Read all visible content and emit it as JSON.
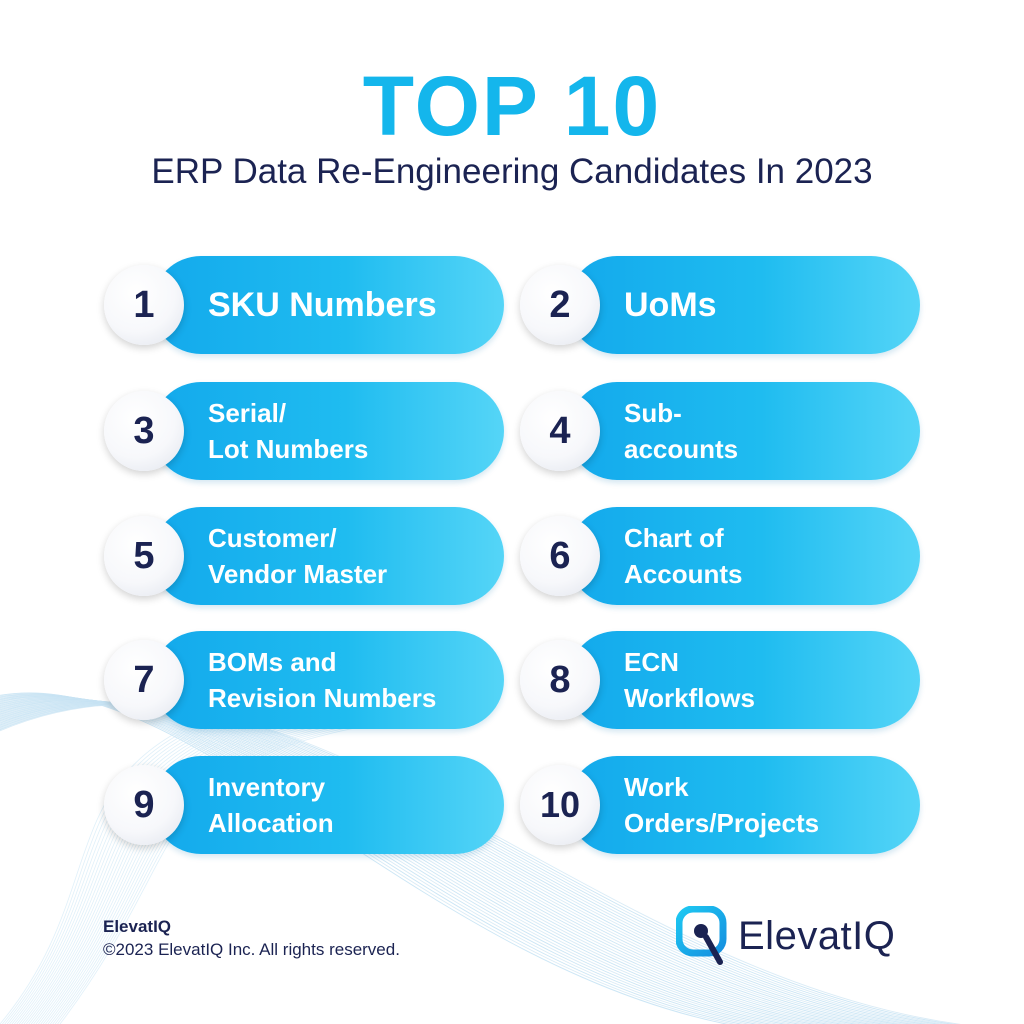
{
  "header": {
    "title": "TOP 10",
    "subtitle": "ERP Data Re-Engineering Candidates In 2023"
  },
  "items": [
    {
      "number": "1",
      "line1": "SKU Numbers",
      "line2": ""
    },
    {
      "number": "2",
      "line1": "UoMs",
      "line2": ""
    },
    {
      "number": "3",
      "line1": "Serial/",
      "line2": "Lot Numbers"
    },
    {
      "number": "4",
      "line1": "Sub-",
      "line2": "accounts"
    },
    {
      "number": "5",
      "line1": "Customer/",
      "line2": "Vendor Master"
    },
    {
      "number": "6",
      "line1": "Chart of",
      "line2": "Accounts"
    },
    {
      "number": "7",
      "line1": "BOMs and",
      "line2": "Revision Numbers"
    },
    {
      "number": "8",
      "line1": "ECN",
      "line2": "Workflows"
    },
    {
      "number": "9",
      "line1": "Inventory",
      "line2": "Allocation"
    },
    {
      "number": "10",
      "line1": "Work",
      "line2": "Orders/Projects"
    }
  ],
  "footer": {
    "brand": "ElevatIQ",
    "copyright": "©2023 ElevatIQ Inc. All rights reserved."
  },
  "logo": {
    "text": "ElevatIQ",
    "icon": "elevatiq-q-icon"
  },
  "colors": {
    "accent": "#14b6ec",
    "navy": "#1b2352",
    "pill_start": "#13a9ec",
    "pill_end": "#55d5f7"
  }
}
